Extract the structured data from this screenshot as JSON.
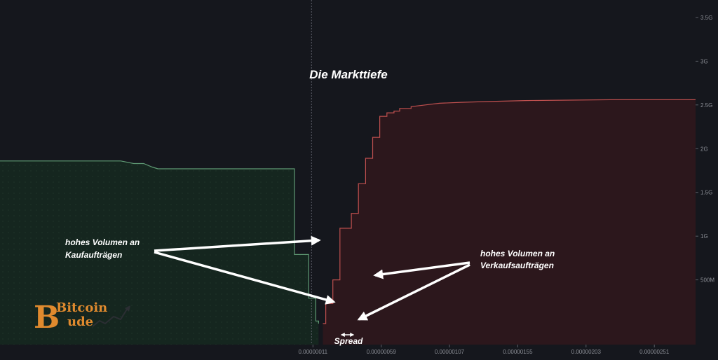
{
  "chart_data": {
    "type": "area",
    "title": "Die Markttiefe",
    "xlabel": "",
    "ylabel": "",
    "x_ticks": [
      "0.00000011",
      "0.00000059",
      "0.00000107",
      "0.00000155",
      "0.00000203",
      "0.00000251"
    ],
    "x_tick_values": [
      1.1e-07,
      5.9e-07,
      1.07e-06,
      1.55e-06,
      2.03e-06,
      2.51e-06
    ],
    "y_ticks": [
      "500M",
      "1G",
      "1.5G",
      "2G",
      "2.5G",
      "3G",
      "3.5G"
    ],
    "y_tick_values": [
      500000000,
      1000000000,
      1500000000,
      2000000000,
      2500000000,
      3000000000,
      3500000000
    ],
    "xlim": [
      -2.09e-06,
      2.8e-06
    ],
    "ylim": [
      -240000000,
      3700000000
    ],
    "y_scale_note": "right axis",
    "grid": false,
    "series": [
      {
        "side": "bid",
        "color": "#5f9a74",
        "fill": "#15261f",
        "x": [
          -2.09e-06,
          -1.24e-06,
          -1.15e-06,
          -1.08e-06,
          -1.02e-06,
          -9.8e-07,
          -2e-08,
          -2e-08,
          8e-08,
          8e-08,
          1.3e-07,
          1.3e-07,
          1.5e-07,
          1.5e-07
        ],
        "y": [
          1860000000,
          1860000000,
          1830000000,
          1830000000,
          1790000000,
          1770000000,
          1770000000,
          790000000,
          790000000,
          290000000,
          290000000,
          30000000,
          30000000,
          0
        ]
      },
      {
        "side": "ask",
        "color": "#c0504f",
        "fill": "#2c171c",
        "x": [
          1.8e-07,
          2e-07,
          2e-07,
          2.5e-07,
          2.5e-07,
          3e-07,
          3e-07,
          3.8e-07,
          3.8e-07,
          4.3e-07,
          4.3e-07,
          4.8e-07,
          4.8e-07,
          5.3e-07,
          5.3e-07,
          5.8e-07,
          5.8e-07,
          6.3e-07,
          6.3e-07,
          6.8e-07,
          6.8e-07,
          7.2e-07,
          7.2e-07,
          8e-07,
          8e-07,
          9e-07,
          1e-06,
          1.15e-06,
          1.35e-06,
          1.6e-06,
          1.9e-06,
          2.2e-06,
          2.5e-06,
          2.8e-06
        ],
        "y": [
          0,
          0,
          230000000,
          230000000,
          500000000,
          500000000,
          1090000000,
          1090000000,
          1260000000,
          1260000000,
          1600000000,
          1600000000,
          1890000000,
          1890000000,
          2130000000,
          2130000000,
          2370000000,
          2370000000,
          2410000000,
          2410000000,
          2430000000,
          2430000000,
          2460000000,
          2460000000,
          2480000000,
          2500000000,
          2520000000,
          2530000000,
          2540000000,
          2550000000,
          2555000000,
          2560000000,
          2560000000,
          2560000000
        ]
      }
    ],
    "mid_price": 1e-07,
    "annotations": {
      "buy_volume": [
        "hohes Volumen an",
        "Kaufaufträgen"
      ],
      "sell_volume": [
        "hohes Volumen an",
        "Verkaufsaufträgen"
      ],
      "spread": "Spread"
    }
  },
  "logo": {
    "line1": "Bitcoin",
    "line2": "Bude",
    "color": "#e08a2e"
  }
}
